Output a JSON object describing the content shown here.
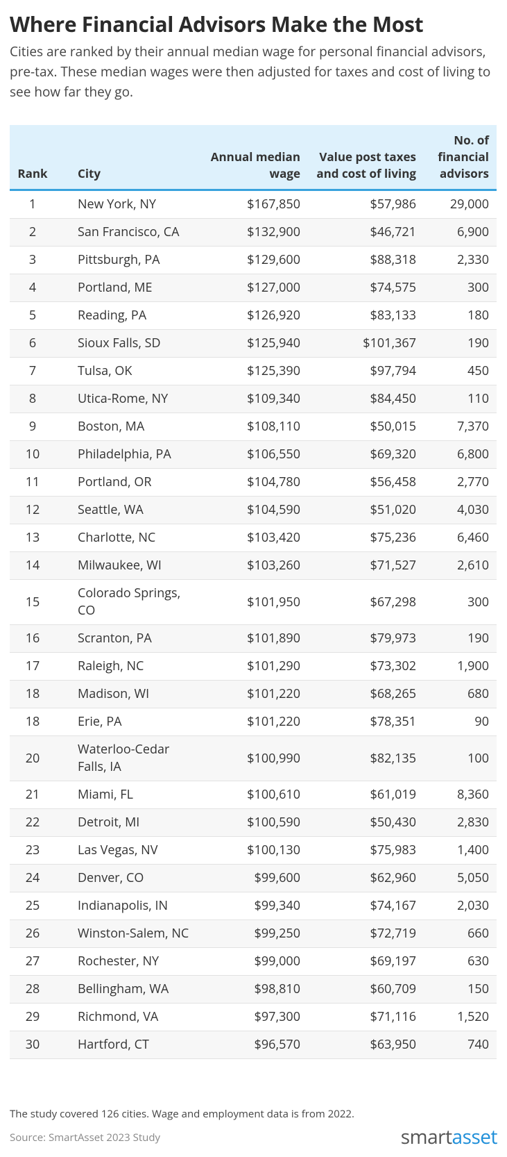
{
  "header": {
    "title": "Where Financial Advisors Make the Most",
    "subtitle": "Cities are ranked by their annual median wage for personal financial advisors, pre-tax. These median wages were then adjusted for taxes and cost of living to see how far they go."
  },
  "table": {
    "columns": [
      "Rank",
      "City",
      "Annual median wage",
      "Value post taxes and cost of living",
      "No. of financial advisors"
    ],
    "rows": [
      [
        "1",
        "New York, NY",
        "$167,850",
        "$57,986",
        "29,000"
      ],
      [
        "2",
        "San Francisco, CA",
        "$132,900",
        "$46,721",
        "6,900"
      ],
      [
        "3",
        "Pittsburgh, PA",
        "$129,600",
        "$88,318",
        "2,330"
      ],
      [
        "4",
        "Portland, ME",
        "$127,000",
        "$74,575",
        "300"
      ],
      [
        "5",
        "Reading, PA",
        "$126,920",
        "$83,133",
        "180"
      ],
      [
        "6",
        "Sioux Falls, SD",
        "$125,940",
        "$101,367",
        "190"
      ],
      [
        "7",
        "Tulsa, OK",
        "$125,390",
        "$97,794",
        "450"
      ],
      [
        "8",
        "Utica-Rome, NY",
        "$109,340",
        "$84,450",
        "110"
      ],
      [
        "9",
        "Boston, MA",
        "$108,110",
        "$50,015",
        "7,370"
      ],
      [
        "10",
        "Philadelphia, PA",
        "$106,550",
        "$69,320",
        "6,800"
      ],
      [
        "11",
        "Portland, OR",
        "$104,780",
        "$56,458",
        "2,770"
      ],
      [
        "12",
        "Seattle, WA",
        "$104,590",
        "$51,020",
        "4,030"
      ],
      [
        "13",
        "Charlotte, NC",
        "$103,420",
        "$75,236",
        "6,460"
      ],
      [
        "14",
        "Milwaukee, WI",
        "$103,260",
        "$71,527",
        "2,610"
      ],
      [
        "15",
        "Colorado Springs, CO",
        "$101,950",
        "$67,298",
        "300"
      ],
      [
        "16",
        "Scranton, PA",
        "$101,890",
        "$79,973",
        "190"
      ],
      [
        "17",
        "Raleigh, NC",
        "$101,290",
        "$73,302",
        "1,900"
      ],
      [
        "18",
        "Madison, WI",
        "$101,220",
        "$68,265",
        "680"
      ],
      [
        "18",
        "Erie, PA",
        "$101,220",
        "$78,351",
        "90"
      ],
      [
        "20",
        "Waterloo-Cedar Falls, IA",
        "$100,990",
        "$82,135",
        "100"
      ],
      [
        "21",
        "Miami, FL",
        "$100,610",
        "$61,019",
        "8,360"
      ],
      [
        "22",
        "Detroit, MI",
        "$100,590",
        "$50,430",
        "2,830"
      ],
      [
        "23",
        "Las Vegas, NV",
        "$100,130",
        "$75,983",
        "1,400"
      ],
      [
        "24",
        "Denver, CO",
        "$99,600",
        "$62,960",
        "5,050"
      ],
      [
        "25",
        "Indianapolis, IN",
        "$99,340",
        "$74,167",
        "2,030"
      ],
      [
        "26",
        "Winston-Salem, NC",
        "$99,250",
        "$72,719",
        "660"
      ],
      [
        "27",
        "Rochester, NY",
        "$99,000",
        "$69,197",
        "630"
      ],
      [
        "28",
        "Bellingham, WA",
        "$98,810",
        "$60,709",
        "150"
      ],
      [
        "29",
        "Richmond, VA",
        "$97,300",
        "$71,116",
        "1,520"
      ],
      [
        "30",
        "Hartford, CT",
        "$96,570",
        "$63,950",
        "740"
      ]
    ]
  },
  "footer": {
    "note": "The study covered 126 cities. Wage and employment data is from 2022.",
    "source": "Source: SmartAsset 2023 Study",
    "logo": [
      "smart",
      "asset"
    ]
  }
}
